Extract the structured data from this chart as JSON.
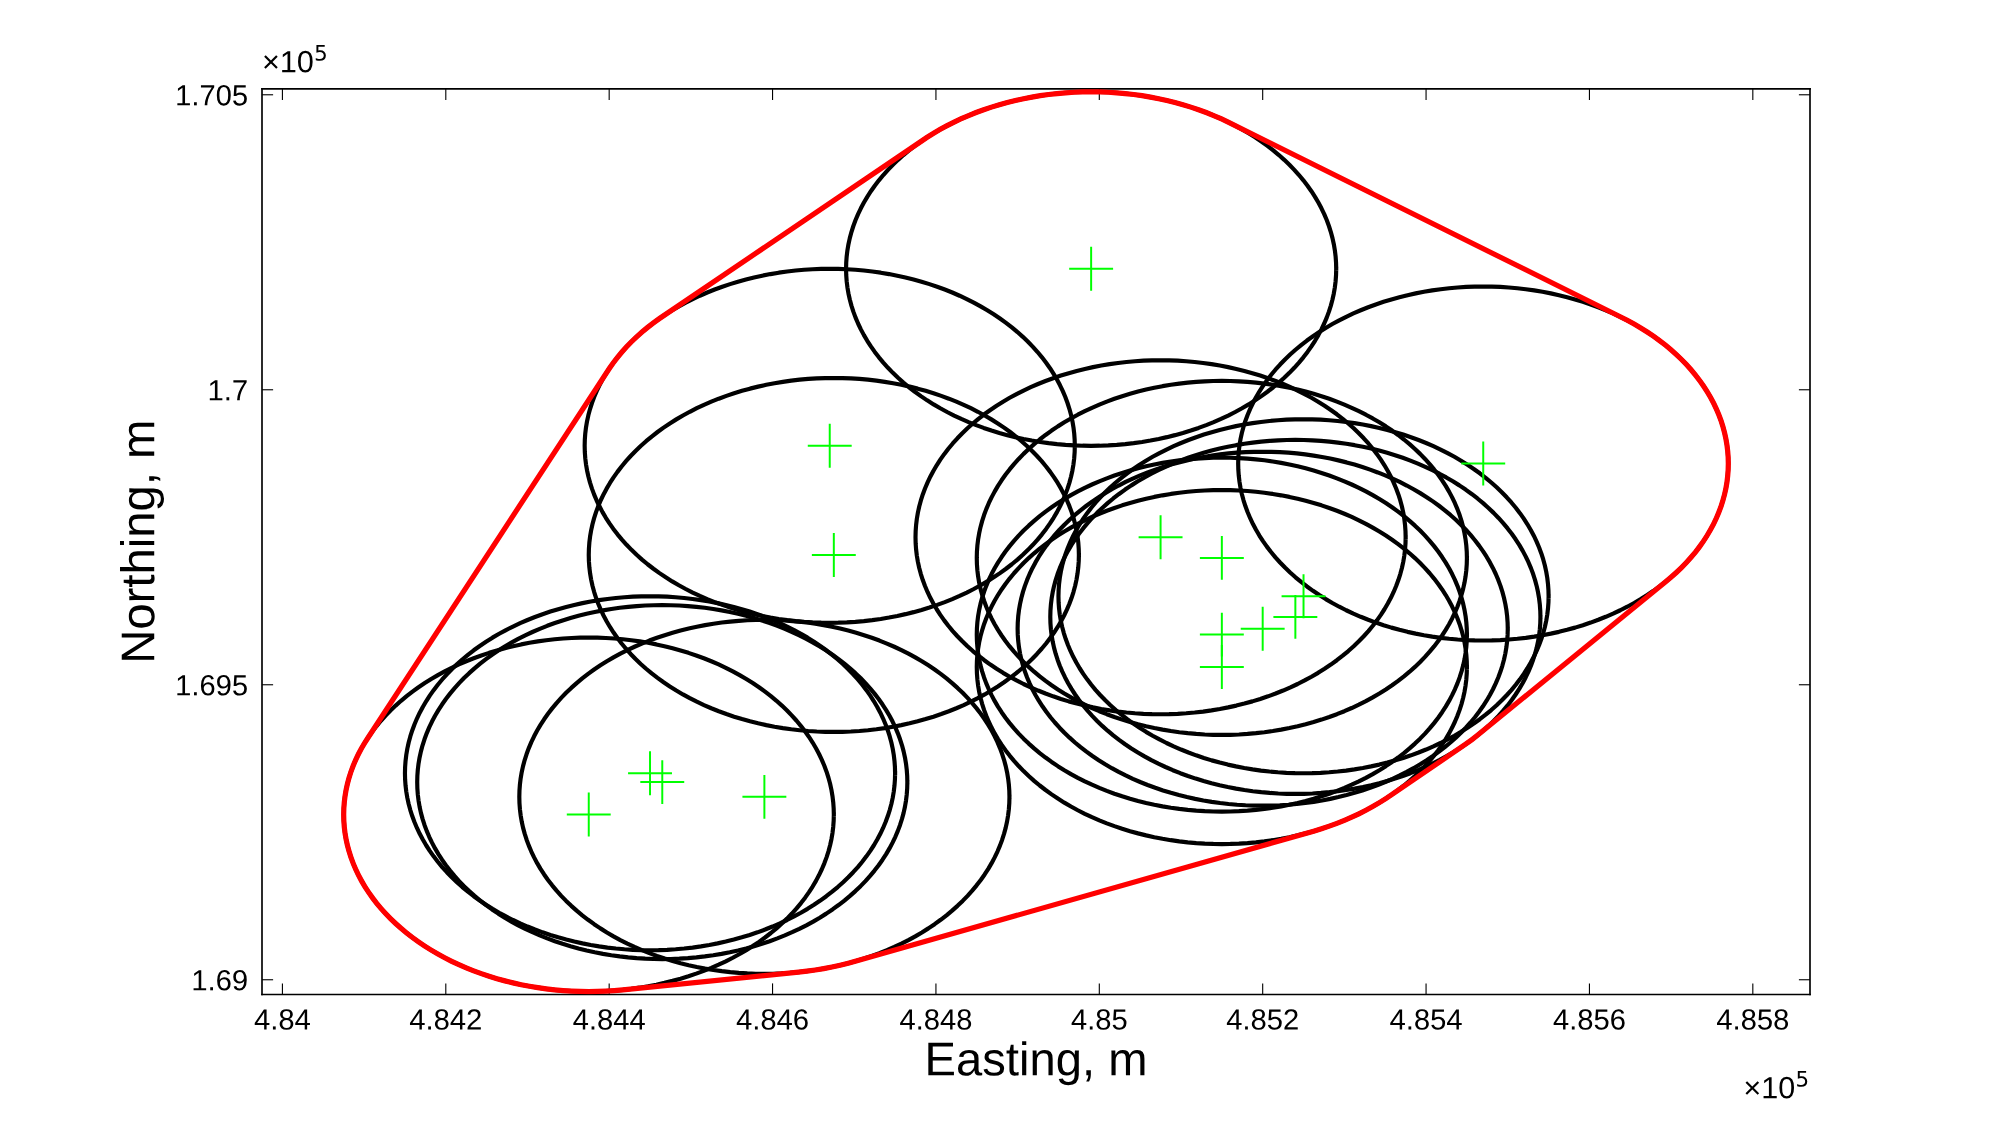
{
  "chart_data": {
    "type": "scatter",
    "xlabel": "Easting, m",
    "ylabel": "Northing, m",
    "xlim": [
      4.83975,
      4.8587
    ],
    "ylim": [
      1.68975,
      1.7051
    ],
    "xticks": [
      4.84,
      4.842,
      4.844,
      4.846,
      4.848,
      4.85,
      4.852,
      4.854,
      4.856,
      4.858
    ],
    "yticks": [
      1.69,
      1.695,
      1.7,
      1.705
    ],
    "annotations": [
      "×10$^{5}$",
      "×10$^{5}$"
    ],
    "series": [
      {
        "color": "#00ff00",
        "marker": "cross",
        "x": [
          4.8499,
          4.8467,
          4.84675,
          4.85075,
          4.8515,
          4.8547,
          4.8525,
          4.8524,
          4.852,
          4.8515,
          4.8515,
          4.8445,
          4.84465,
          4.8459,
          4.84375
        ],
        "values": [
          1.70205,
          1.69905,
          1.6972,
          1.6975,
          1.69715,
          1.69875,
          1.6965,
          1.69615,
          1.69595,
          1.69585,
          1.6953,
          1.6935,
          1.69335,
          1.6931,
          1.6928
        ]
      }
    ]
  }
}
